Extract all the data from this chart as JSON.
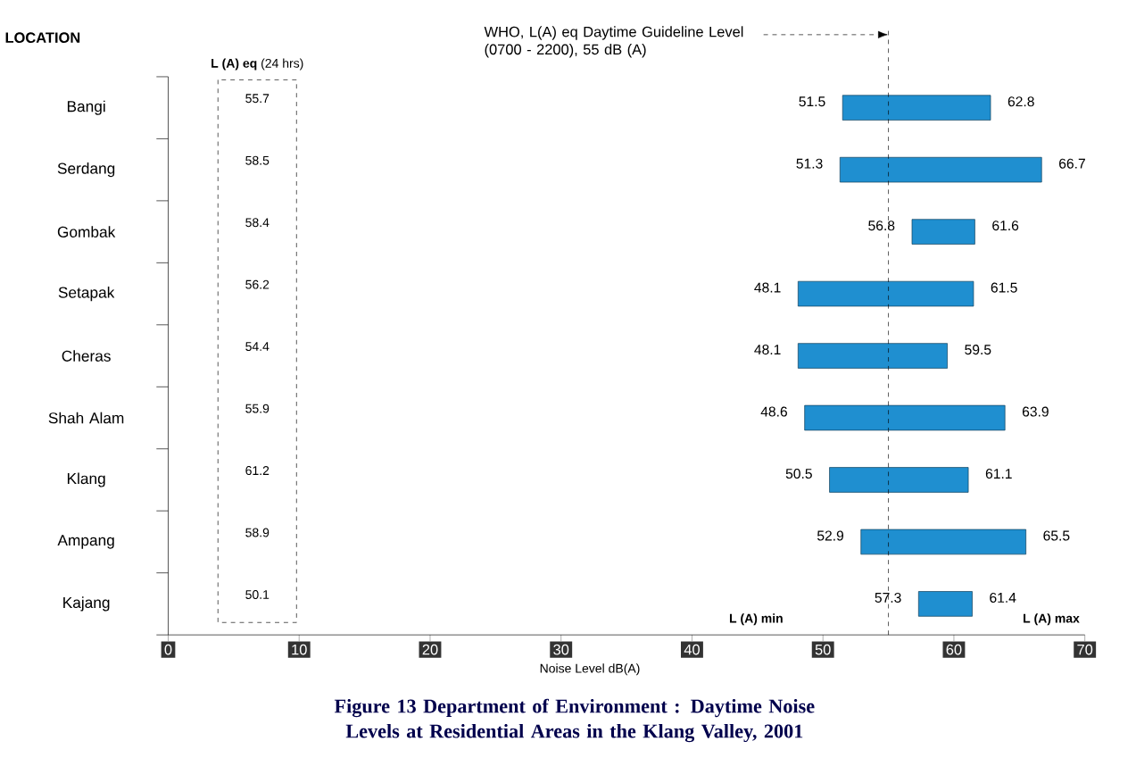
{
  "chart_data": {
    "type": "bar",
    "orientation": "horizontal",
    "title": "Figure 13 Department of Environment : Daytime Noise Levels at Residential Areas in the Klang Valley, 2001",
    "xlabel": "Noise Level dB(A)",
    "ylabel": "LOCATION",
    "categories": [
      "Bangi",
      "Serdang",
      "Gombak",
      "Setapak",
      "Cheras",
      "Shah Alam",
      "Klang",
      "Ampang",
      "Kajang"
    ],
    "base": [
      51.5,
      51.3,
      56.8,
      48.1,
      48.1,
      48.6,
      50.5,
      52.9,
      57.3
    ],
    "values": [
      11.3,
      15.4,
      4.8,
      13.4,
      11.4,
      15.3,
      10.6,
      12.6,
      4.1
    ],
    "color": "#1f8fd0",
    "xlim": [
      0,
      70
    ],
    "xticks": [
      0,
      10,
      20,
      30,
      40,
      50,
      60,
      70
    ],
    "ref_lines": [
      {
        "axis": "x",
        "value": 55,
        "label": "WHO, L(A) eq Daytime Guideline Level (0700 - 2200), 55 dB (A)",
        "line_style": "dashed"
      }
    ],
    "annotations": [
      "**L (A) eq** (24 hrs)",
      "55.7",
      "58.5",
      "58.4",
      "56.2",
      "54.4",
      "55.9",
      "61.2",
      "58.9",
      "50.1",
      "L (A) min",
      "L (A) max",
      {
        "text": "51.5",
        "x": 51.5,
        "y": "Bangi"
      },
      {
        "text": "62.8",
        "x": 62.8,
        "y": "Bangi"
      },
      {
        "text": "51.3",
        "x": 51.3,
        "y": "Serdang"
      },
      {
        "text": "66.7",
        "x": 66.7,
        "y": "Serdang"
      },
      {
        "text": "56.8",
        "x": 56.8,
        "y": "Gombak"
      },
      {
        "text": "61.6",
        "x": 61.6,
        "y": "Gombak"
      },
      {
        "text": "48.1",
        "x": 48.1,
        "y": "Setapak"
      },
      {
        "text": "61.5",
        "x": 61.5,
        "y": "Setapak"
      },
      {
        "text": "48.1",
        "x": 48.1,
        "y": "Cheras"
      },
      {
        "text": "59.5",
        "x": 59.5,
        "y": "Cheras"
      },
      {
        "text": "48.6",
        "x": 48.6,
        "y": "Shah Alam"
      },
      {
        "text": "63.9",
        "x": 63.9,
        "y": "Shah Alam"
      },
      {
        "text": "50.5",
        "x": 50.5,
        "y": "Klang"
      },
      {
        "text": "61.1",
        "x": 61.1,
        "y": "Klang"
      },
      {
        "text": "52.9",
        "x": 52.9,
        "y": "Ampang"
      },
      {
        "text": "65.5",
        "x": 65.5,
        "y": "Ampang"
      },
      {
        "text": "57.3",
        "x": 57.3,
        "y": "Kajang"
      },
      {
        "text": "61.4",
        "x": 61.4,
        "y": "Kajang"
      }
    ]
  }
}
